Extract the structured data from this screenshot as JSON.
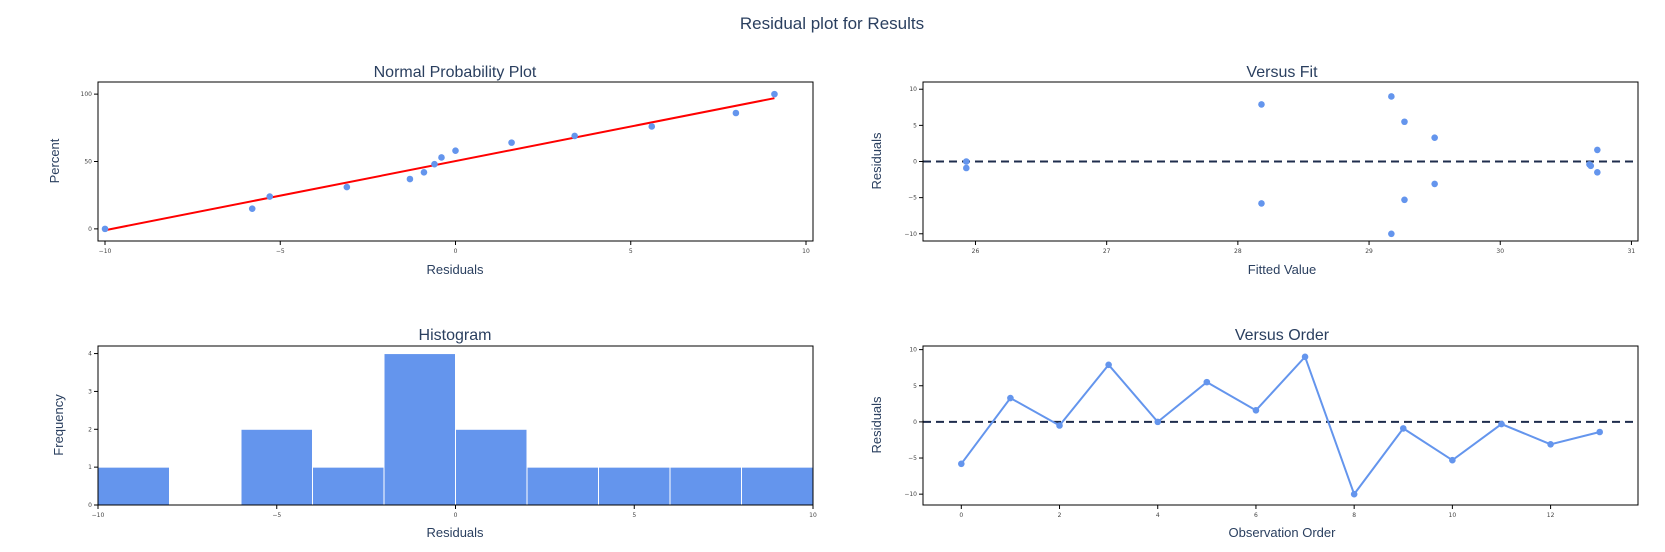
{
  "figure_title": "Residual plot for Results",
  "colors": {
    "marker": "#6495ED",
    "fit_line": "#FF0000",
    "zero_line": "#1f2d4d",
    "frame": "#000000",
    "text": "#2a3f5f"
  },
  "chart_data": [
    {
      "id": "normal",
      "type": "scatter",
      "title": "Normal Probability Plot",
      "xlabel": "Residuals",
      "ylabel": "Percent",
      "xlim": [
        -10.2,
        10.2
      ],
      "ylim": [
        -9,
        109
      ],
      "xticks": [
        -10,
        -5,
        0,
        5,
        10
      ],
      "xtick_labels": [
        "−10",
        "−5",
        "0",
        "5",
        "10"
      ],
      "yticks": [
        0,
        50,
        100
      ],
      "ytick_labels": [
        "0",
        "50",
        "100"
      ],
      "points": {
        "x": [
          -10,
          -5.8,
          -5.3,
          -3.1,
          -1.3,
          -0.9,
          -0.6,
          -0.4,
          0.0,
          1.6,
          3.4,
          5.6,
          8.0,
          9.1
        ],
        "y": [
          0,
          15,
          24,
          31,
          37,
          42,
          48,
          53,
          58,
          64,
          69,
          76,
          86,
          100
        ]
      },
      "fit_line": {
        "x": [
          -10,
          9.1
        ],
        "y": [
          -1,
          97
        ]
      }
    },
    {
      "id": "fit",
      "type": "scatter",
      "title": "Versus Fit",
      "xlabel": "Fitted Value",
      "ylabel": "Residuals",
      "xlim": [
        25.6,
        31.05
      ],
      "ylim": [
        -11,
        11
      ],
      "xticks": [
        26,
        27,
        28,
        29,
        30,
        31
      ],
      "xtick_labels": [
        "26",
        "27",
        "28",
        "29",
        "30",
        "31"
      ],
      "yticks": [
        -10,
        -5,
        0,
        5,
        10
      ],
      "ytick_labels": [
        "−10",
        "−5",
        "0",
        "5",
        "10"
      ],
      "points": {
        "x": [
          25.93,
          25.93,
          28.18,
          28.18,
          29.17,
          29.17,
          29.27,
          29.27,
          29.5,
          29.5,
          30.68,
          30.69,
          30.74,
          30.74
        ],
        "y": [
          0.0,
          -0.9,
          7.9,
          -5.8,
          9.0,
          -10.0,
          5.5,
          -5.3,
          3.3,
          -3.1,
          -0.4,
          -0.6,
          1.6,
          -1.5
        ]
      },
      "zero_line": 0
    },
    {
      "id": "hist",
      "type": "bar",
      "title": "Histogram",
      "xlabel": "Residuals",
      "ylabel": "Frequency",
      "xlim": [
        -10,
        10
      ],
      "ylim": [
        0,
        4.2
      ],
      "xticks": [
        -10,
        -5,
        0,
        5,
        10
      ],
      "xtick_labels": [
        "−10",
        "−5",
        "0",
        "5",
        "10"
      ],
      "yticks": [
        0,
        1,
        2,
        3,
        4
      ],
      "ytick_labels": [
        "0",
        "1",
        "2",
        "3",
        "4"
      ],
      "bins": [
        {
          "start": -10,
          "end": -8,
          "count": 1
        },
        {
          "start": -8,
          "end": -6,
          "count": 0
        },
        {
          "start": -6,
          "end": -4,
          "count": 2
        },
        {
          "start": -4,
          "end": -2,
          "count": 1
        },
        {
          "start": -2,
          "end": 0,
          "count": 4
        },
        {
          "start": 0,
          "end": 2,
          "count": 2
        },
        {
          "start": 2,
          "end": 4,
          "count": 1
        },
        {
          "start": 4,
          "end": 6,
          "count": 1
        },
        {
          "start": 6,
          "end": 8,
          "count": 1
        },
        {
          "start": 8,
          "end": 10,
          "count": 1
        }
      ]
    },
    {
      "id": "order",
      "type": "line",
      "title": "Versus Order",
      "xlabel": "Observation Order",
      "ylabel": "Residuals",
      "xlim": [
        -0.78,
        13.78
      ],
      "ylim": [
        -11.5,
        10.5
      ],
      "xticks": [
        0,
        2,
        4,
        6,
        8,
        10,
        12
      ],
      "xtick_labels": [
        "0",
        "2",
        "4",
        "6",
        "8",
        "10",
        "12"
      ],
      "yticks": [
        -10,
        -5,
        0,
        5,
        10
      ],
      "ytick_labels": [
        "−10",
        "−5",
        "0",
        "5",
        "10"
      ],
      "points": {
        "x": [
          0,
          1,
          2,
          3,
          4,
          5,
          6,
          7,
          8,
          9,
          10,
          11,
          12,
          13
        ],
        "y": [
          -5.8,
          3.3,
          -0.5,
          7.9,
          0.0,
          5.5,
          1.6,
          9.0,
          -10.0,
          -0.9,
          -5.3,
          -0.3,
          -3.1,
          -1.4
        ]
      },
      "zero_line": 0
    }
  ]
}
